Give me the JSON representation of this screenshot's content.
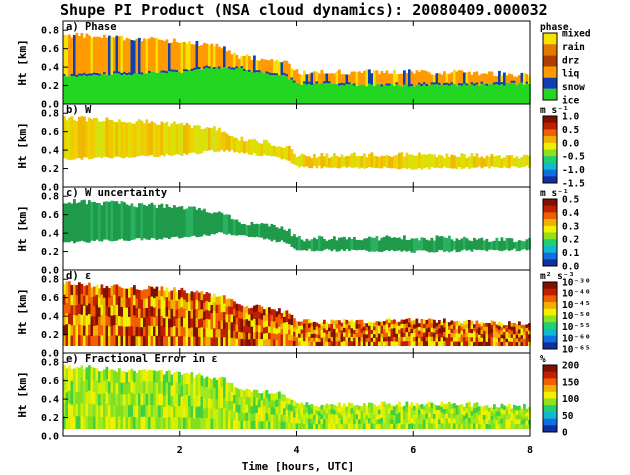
{
  "figure": {
    "title": "Shupe PI Product (NSA cloud dynamics): 20080409.000032",
    "xlabel": "Time [hours, UTC]",
    "ylabel": "Ht [km]",
    "x_ticks": [
      "2",
      "4",
      "6",
      "8"
    ],
    "y_ticks": [
      "0.8",
      "0.6",
      "0.4",
      "0.2",
      "0.0"
    ]
  },
  "panels": [
    {
      "label": "a) Phase",
      "cb_unit": "phase",
      "cb_labels": [
        "mixed",
        "rain",
        "drz",
        "liq",
        "snow",
        "ice"
      ],
      "cb_colors": [
        "#f5e200",
        "#e07a00",
        "#b03c00",
        "#ff9a00",
        "#1040b0",
        "#22d622"
      ]
    },
    {
      "label": "b) W",
      "cb_unit": "m s⁻¹",
      "cb_labels": [
        "1.0",
        "0.5",
        "0.0",
        "-0.5",
        "-1.0",
        "-1.5"
      ]
    },
    {
      "label": "c) W uncertainty",
      "cb_unit": "m s⁻¹",
      "cb_labels": [
        "0.5",
        "0.4",
        "0.3",
        "0.2",
        "0.1",
        "0.0"
      ]
    },
    {
      "label": "d) ε",
      "cb_unit": "m² s⁻³",
      "cb_labels": [
        "10⁻³⁰",
        "10⁻⁴⁰",
        "10⁻⁴⁵",
        "10⁻⁵⁰",
        "10⁻⁵⁵",
        "10⁻⁶⁰",
        "10⁻⁶⁵"
      ]
    },
    {
      "label": "e) Fractional Error in ε",
      "cb_unit": "%",
      "cb_labels": [
        "200",
        "150",
        "100",
        "50",
        "0"
      ]
    }
  ],
  "chart_data": {
    "type": "heatmap",
    "title": "Shupe PI Product (NSA cloud dynamics): 20080409.000032",
    "xlabel": "Time [hours, UTC]",
    "ylabel": "Ht [km]",
    "xlim": [
      0,
      8
    ],
    "ylim": [
      0.0,
      0.9
    ],
    "cloud_top_km": [
      [
        0.0,
        0.75
      ],
      [
        1.0,
        0.72
      ],
      [
        2.0,
        0.68
      ],
      [
        2.7,
        0.62
      ],
      [
        3.0,
        0.52
      ],
      [
        3.5,
        0.48
      ],
      [
        3.8,
        0.45
      ],
      [
        4.0,
        0.34
      ],
      [
        6.0,
        0.35
      ],
      [
        7.0,
        0.34
      ],
      [
        8.0,
        0.32
      ]
    ],
    "cloud_base_km": [
      [
        0.0,
        0.3
      ],
      [
        2.0,
        0.35
      ],
      [
        2.7,
        0.4
      ],
      [
        3.0,
        0.38
      ],
      [
        3.8,
        0.3
      ],
      [
        4.0,
        0.22
      ],
      [
        6.0,
        0.2
      ],
      [
        8.0,
        0.22
      ]
    ]
  }
}
